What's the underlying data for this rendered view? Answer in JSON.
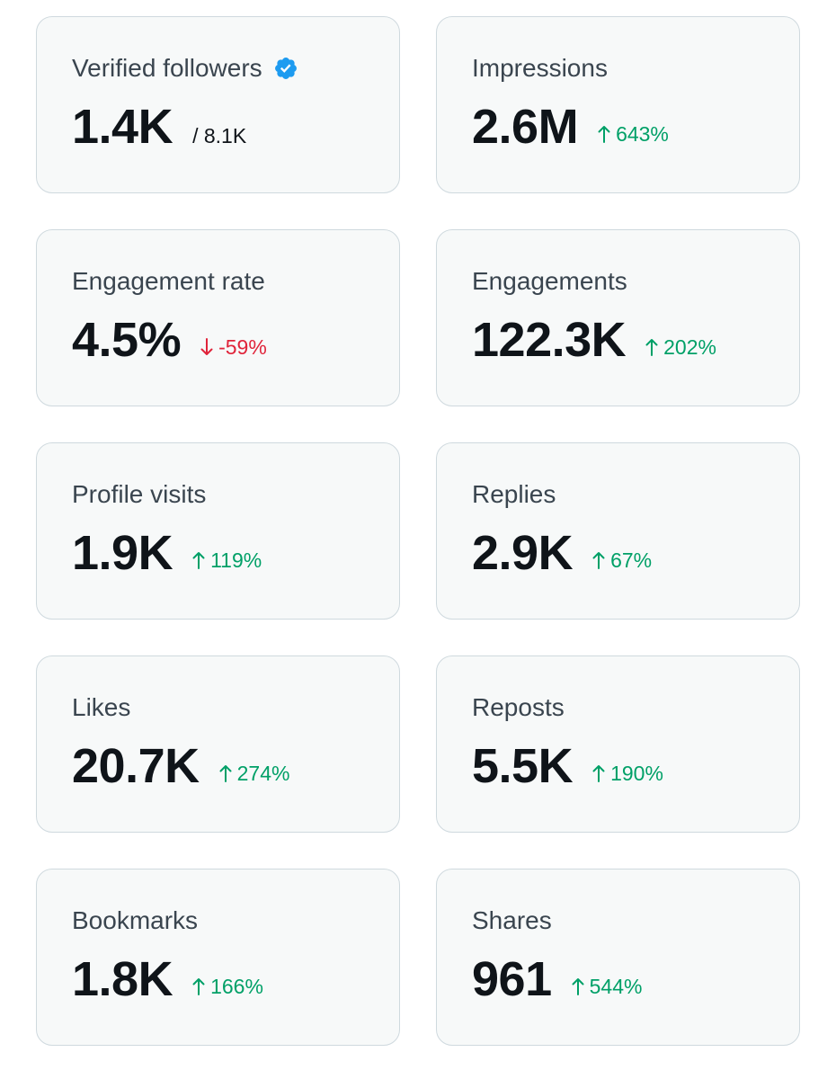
{
  "colors": {
    "up": "#00a067",
    "down": "#e0243a",
    "verified": "#1d9bf0"
  },
  "cards": [
    {
      "label": "Verified followers",
      "value": "1.4K",
      "sub": "/ 8.1K",
      "icon": "verified-badge-icon"
    },
    {
      "label": "Impressions",
      "value": "2.6M",
      "change": "643%",
      "direction": "up"
    },
    {
      "label": "Engagement rate",
      "value": "4.5%",
      "change": "-59%",
      "direction": "down"
    },
    {
      "label": "Engagements",
      "value": "122.3K",
      "change": "202%",
      "direction": "up"
    },
    {
      "label": "Profile visits",
      "value": "1.9K",
      "change": "119%",
      "direction": "up"
    },
    {
      "label": "Replies",
      "value": "2.9K",
      "change": "67%",
      "direction": "up"
    },
    {
      "label": "Likes",
      "value": "20.7K",
      "change": "274%",
      "direction": "up"
    },
    {
      "label": "Reposts",
      "value": "5.5K",
      "change": "190%",
      "direction": "up"
    },
    {
      "label": "Bookmarks",
      "value": "1.8K",
      "change": "166%",
      "direction": "up"
    },
    {
      "label": "Shares",
      "value": "961",
      "change": "544%",
      "direction": "up"
    }
  ]
}
